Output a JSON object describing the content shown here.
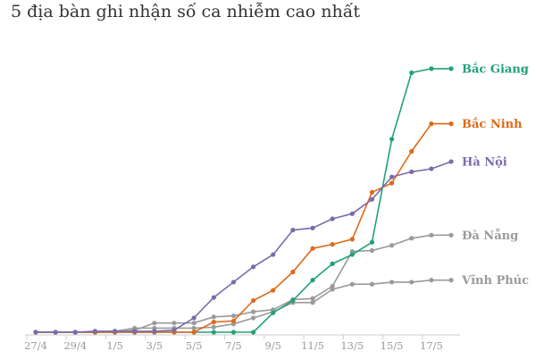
{
  "chart_data": {
    "type": "line",
    "title": "5 địa bàn ghi nhận số ca nhiễm cao nhất",
    "xlabel": "",
    "ylabel": "",
    "x": [
      "27/4",
      "28/4",
      "29/4",
      "30/4",
      "1/5",
      "2/5",
      "3/5",
      "4/5",
      "5/5",
      "6/5",
      "7/5",
      "8/5",
      "9/5",
      "10/5",
      "11/5",
      "12/5",
      "13/5",
      "14/5",
      "15/5",
      "16/5",
      "17/5",
      "18/5"
    ],
    "x_tick_labels": [
      "27/4",
      "29/4",
      "1/5",
      "3/5",
      "5/5",
      "7/5",
      "9/5",
      "11/5",
      "13/5",
      "15/5",
      "17/5"
    ],
    "ylim": [
      0,
      1320
    ],
    "grid": false,
    "legend": "direct labels at line ends",
    "series": [
      {
        "name": "Bắc Giang",
        "color": "#22a07a",
        "values": [
          0,
          0,
          0,
          0,
          0,
          0,
          0,
          0,
          0,
          0,
          0,
          0,
          95,
          155,
          255,
          335,
          380,
          440,
          945,
          1270,
          1290,
          1290
        ]
      },
      {
        "name": "Bắc Ninh",
        "color": "#dc6a18",
        "values": [
          0,
          0,
          0,
          0,
          0,
          0,
          0,
          0,
          0,
          50,
          55,
          155,
          205,
          295,
          410,
          430,
          455,
          685,
          730,
          885,
          1020,
          1020
        ]
      },
      {
        "name": "Hà Nội",
        "color": "#7b6aac",
        "values": [
          0,
          0,
          0,
          5,
          5,
          5,
          5,
          10,
          70,
          170,
          245,
          320,
          380,
          500,
          510,
          555,
          580,
          650,
          760,
          785,
          800,
          835
        ]
      },
      {
        "name": "Đà Nẵng",
        "color": "#9a9a9a",
        "values": [
          0,
          0,
          0,
          0,
          0,
          10,
          45,
          45,
          45,
          75,
          80,
          100,
          110,
          160,
          165,
          225,
          395,
          400,
          425,
          460,
          475,
          475
        ]
      },
      {
        "name": "Vĩnh Phúc",
        "color": "#9a9a9a",
        "values": [
          0,
          0,
          0,
          0,
          5,
          20,
          20,
          20,
          20,
          25,
          40,
          70,
          100,
          145,
          145,
          210,
          235,
          235,
          245,
          245,
          255,
          255
        ]
      }
    ]
  }
}
